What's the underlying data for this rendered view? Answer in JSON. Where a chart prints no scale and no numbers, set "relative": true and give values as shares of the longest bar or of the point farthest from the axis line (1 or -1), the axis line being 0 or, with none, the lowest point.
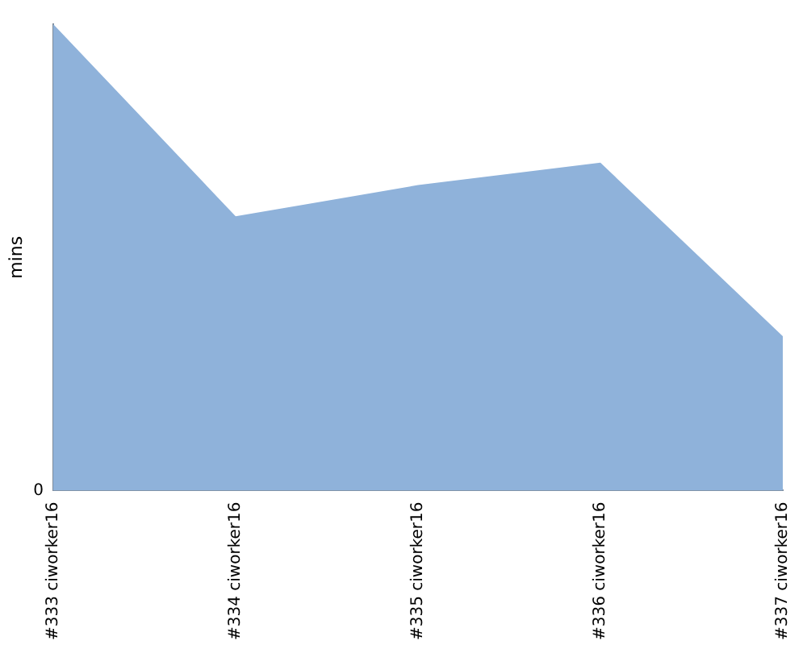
{
  "chart_data": {
    "type": "area",
    "ylabel": "mins",
    "relative": true,
    "annotations": [
      "0"
    ],
    "categories": [
      "#333 ciworker16",
      "#334 ciworker16",
      "#335 ciworker16",
      "#336 ciworker16",
      "#337 ciworker16"
    ],
    "series": [
      {
        "color": "#8fb2da",
        "values": [
          1,
          0.588,
          0.655,
          0.703,
          0.331
        ]
      }
    ],
    "grid": false,
    "legend": false
  }
}
